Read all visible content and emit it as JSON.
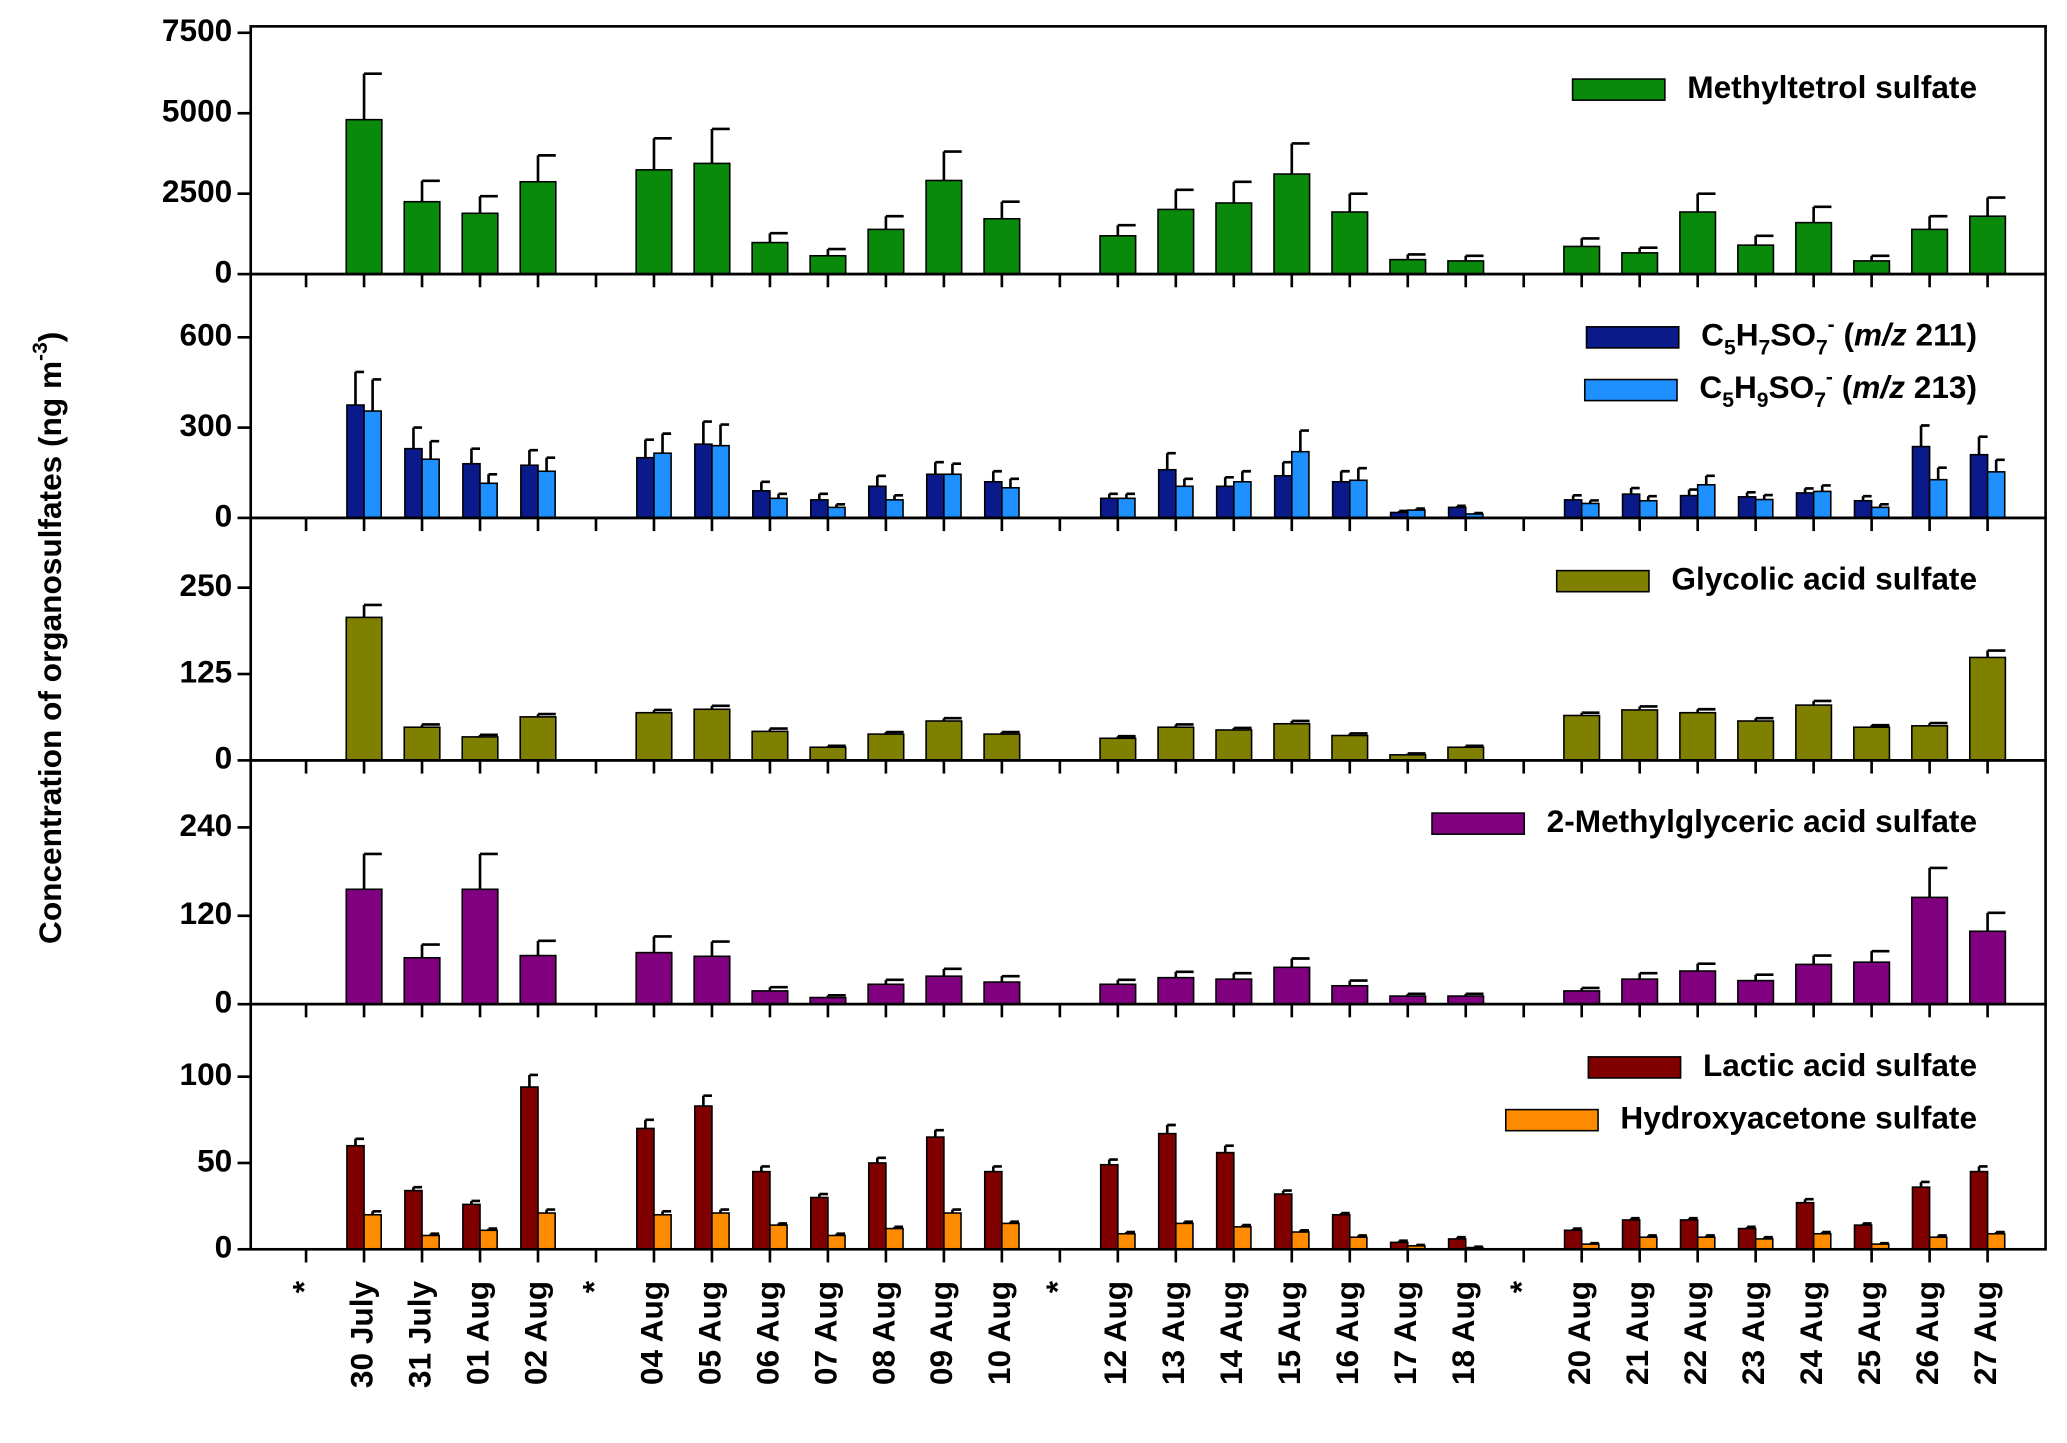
{
  "y_axis_label": [
    "Concentration of organosulfates (ng m",
    "-3",
    ")"
  ],
  "chart_data": [
    {
      "type": "bar",
      "ylim": [
        0,
        7700
      ],
      "yticks": [
        0,
        2500,
        5000,
        7500
      ],
      "legend": "upper right",
      "series": [
        {
          "name": "Methyltetrol sulfate",
          "color": "#0a8a0a",
          "values": [
            null,
            4800,
            2250,
            1890,
            2870,
            null,
            3240,
            3440,
            980,
            570,
            1390,
            2910,
            1720,
            null,
            1190,
            2010,
            2210,
            3110,
            1930,
            450,
            410,
            null,
            860,
            660,
            1930,
            900,
            1600,
            410,
            1390,
            1800
          ],
          "errors": [
            null,
            1430,
            650,
            530,
            820,
            null,
            980,
            1070,
            290,
            210,
            410,
            900,
            530,
            null,
            330,
            610,
            660,
            950,
            570,
            160,
            160,
            null,
            250,
            160,
            570,
            290,
            490,
            160,
            410,
            580
          ]
        }
      ]
    },
    {
      "type": "bar",
      "ylim": [
        0,
        810
      ],
      "yticks": [
        0,
        300,
        600
      ],
      "legend": "upper right",
      "series": [
        {
          "name": [
            [
              "C",
              ""
            ],
            [
              "5",
              "sub"
            ],
            [
              "H",
              ""
            ],
            [
              "7",
              "sub"
            ],
            [
              "SO",
              ""
            ],
            [
              "7",
              "sub"
            ],
            [
              "-",
              "sup"
            ],
            [
              " (",
              ""
            ],
            [
              "m/z",
              "i"
            ],
            [
              " 211)",
              ""
            ]
          ],
          "color": "#0a1a8a",
          "values": [
            null,
            375,
            230,
            180,
            175,
            null,
            200,
            245,
            90,
            60,
            105,
            145,
            120,
            null,
            65,
            160,
            105,
            140,
            120,
            18,
            35,
            null,
            60,
            79,
            74,
            70,
            83,
            57,
            237,
            210
          ],
          "errors": [
            null,
            110,
            70,
            50,
            50,
            null,
            60,
            75,
            30,
            20,
            35,
            40,
            35,
            null,
            15,
            55,
            30,
            45,
            35,
            5,
            5,
            null,
            15,
            20,
            20,
            15,
            15,
            15,
            70,
            60
          ]
        },
        {
          "name": [
            [
              "C",
              ""
            ],
            [
              "5",
              "sub"
            ],
            [
              "H",
              ""
            ],
            [
              "9",
              "sub"
            ],
            [
              "SO",
              ""
            ],
            [
              "7",
              "sub"
            ],
            [
              "-",
              "sup"
            ],
            [
              " (",
              ""
            ],
            [
              "m/z",
              "i"
            ],
            [
              " 213)",
              ""
            ]
          ],
          "color": "#1e90ff",
          "values": [
            null,
            355,
            195,
            115,
            155,
            null,
            215,
            240,
            65,
            35,
            60,
            145,
            100,
            null,
            65,
            105,
            120,
            220,
            125,
            26,
            13,
            null,
            48,
            57,
            110,
            61,
            88,
            35,
            127,
            153
          ],
          "errors": [
            null,
            105,
            60,
            30,
            45,
            null,
            65,
            70,
            15,
            10,
            15,
            35,
            30,
            null,
            15,
            25,
            35,
            70,
            40,
            5,
            3,
            null,
            10,
            15,
            30,
            15,
            20,
            10,
            40,
            40
          ]
        }
      ]
    },
    {
      "type": "bar",
      "ylim": [
        0,
        351
      ],
      "yticks": [
        0,
        125,
        250
      ],
      "legend": "upper right",
      "series": [
        {
          "name": "Glycolic acid sulfate",
          "color": "#808000",
          "values": [
            null,
            207,
            48,
            34,
            63,
            null,
            69,
            74,
            42,
            19,
            38,
            57,
            38,
            null,
            32,
            48,
            44,
            53,
            36,
            8,
            19,
            null,
            65,
            73,
            69,
            57,
            80,
            48,
            50,
            149
          ],
          "errors": [
            null,
            18,
            4,
            3,
            4,
            null,
            4,
            5,
            4,
            2,
            3,
            4,
            3,
            null,
            3,
            4,
            3,
            4,
            3,
            2,
            2,
            null,
            4,
            5,
            5,
            4,
            6,
            3,
            4,
            10
          ]
        }
      ]
    },
    {
      "type": "bar",
      "ylim": [
        0,
        331
      ],
      "yticks": [
        0,
        120,
        240
      ],
      "legend": "upper right",
      "series": [
        {
          "name": "2-Methylglyceric acid sulfate",
          "color": "#800080",
          "values": [
            null,
            156,
            63,
            156,
            66,
            null,
            70,
            65,
            18,
            9,
            27,
            38,
            30,
            null,
            27,
            36,
            34,
            50,
            25,
            11,
            11,
            null,
            18,
            34,
            45,
            32,
            54,
            57,
            145,
            99
          ],
          "errors": [
            null,
            48,
            18,
            48,
            20,
            null,
            22,
            20,
            5,
            3,
            6,
            10,
            8,
            null,
            6,
            8,
            8,
            12,
            7,
            3,
            3,
            null,
            4,
            8,
            10,
            8,
            12,
            15,
            40,
            25
          ]
        }
      ]
    },
    {
      "type": "bar",
      "ylim": [
        0,
        142
      ],
      "yticks": [
        0,
        50,
        100
      ],
      "legend": "upper right",
      "categories": [
        "*",
        "30 July",
        "31 July",
        "01 Aug",
        "02 Aug",
        "*",
        "04 Aug",
        "05 Aug",
        "06 Aug",
        "07 Aug",
        "08 Aug",
        "09 Aug",
        "10 Aug",
        "*",
        "12 Aug",
        "13 Aug",
        "14 Aug",
        "15 Aug",
        "16 Aug",
        "17 Aug",
        "18 Aug",
        "*",
        "20 Aug",
        "21 Aug",
        "22 Aug",
        "23 Aug",
        "24 Aug",
        "25 Aug",
        "26 Aug",
        "27 Aug"
      ],
      "series": [
        {
          "name": "Lactic acid sulfate",
          "color": "#800000",
          "values": [
            null,
            60,
            34,
            26,
            94,
            null,
            70,
            83,
            45,
            30,
            50,
            65,
            45,
            null,
            49,
            67,
            56,
            32,
            20,
            4,
            6,
            null,
            11,
            17,
            17,
            12,
            27,
            14,
            36,
            45
          ],
          "errors": [
            null,
            4,
            2,
            2,
            7,
            null,
            5,
            6,
            3,
            2,
            3,
            4,
            3,
            null,
            3,
            5,
            4,
            2,
            1,
            1,
            1,
            null,
            1,
            1,
            1,
            1,
            2,
            1,
            3,
            3
          ]
        },
        {
          "name": "Hydroxyacetone sulfate",
          "color": "#ff8c00",
          "values": [
            null,
            20,
            8,
            11,
            21,
            null,
            20,
            21,
            14,
            8,
            12,
            21,
            15,
            null,
            9,
            15,
            13,
            10,
            7,
            2,
            1,
            null,
            3,
            7,
            7,
            6,
            9,
            3,
            7,
            9
          ],
          "errors": [
            null,
            2,
            1,
            1,
            2,
            null,
            2,
            2,
            1,
            1,
            1,
            2,
            1,
            null,
            1,
            1,
            1,
            1,
            1,
            0.5,
            0.5,
            null,
            0.5,
            1,
            1,
            1,
            1,
            0.5,
            1,
            1
          ]
        }
      ]
    }
  ]
}
